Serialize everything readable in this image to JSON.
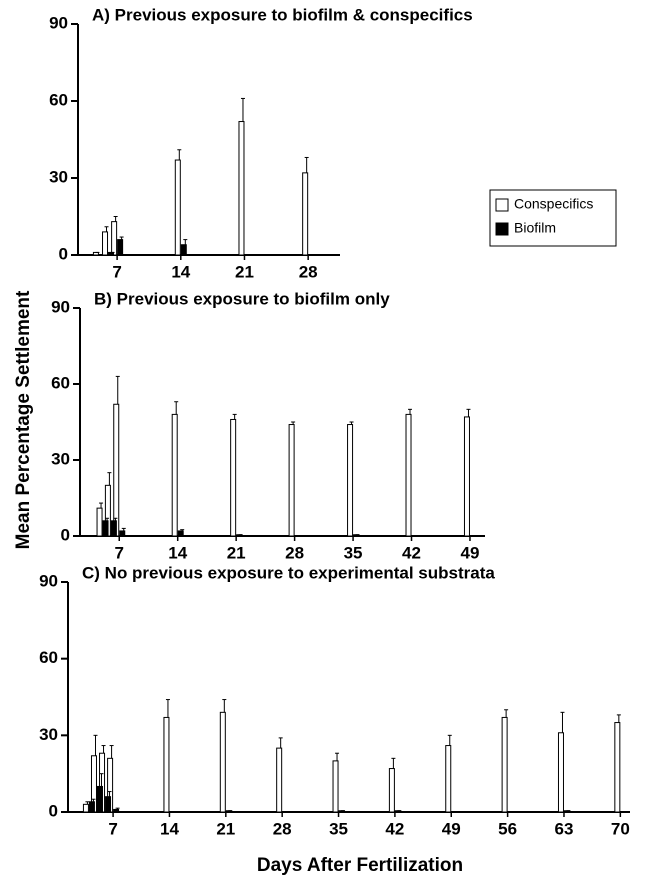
{
  "axis_labels": {
    "y": "Mean Percentage Settlement",
    "x": "Days After Fertilization"
  },
  "chart_data": [
    {
      "type": "bar",
      "title": "A) Previous exposure to biofilm & conspecifics",
      "x": [
        5,
        6,
        7,
        14,
        21,
        28
      ],
      "series": [
        {
          "name": "Conspecifics",
          "color": "#ffffff",
          "values": [
            1,
            9,
            13,
            37,
            52,
            32
          ],
          "errors": [
            0,
            2,
            2,
            4,
            9,
            6
          ]
        },
        {
          "name": "Biofilm",
          "color": "#000000",
          "values": [
            0,
            1,
            6,
            4,
            0,
            0
          ],
          "errors": [
            0,
            0,
            1,
            2,
            0,
            0
          ]
        }
      ],
      "xlim": [
        2.7,
        31.5
      ],
      "xticks": [
        7,
        14,
        21,
        28
      ],
      "ylim": [
        0,
        90
      ],
      "yticks": [
        0,
        30,
        60,
        90
      ],
      "legend": "right"
    },
    {
      "type": "bar",
      "title": "B) Previous exposure to biofilm only",
      "x": [
        5,
        6,
        7,
        14,
        21,
        28,
        35,
        42,
        49
      ],
      "series": [
        {
          "color": "#ffffff",
          "values": [
            11,
            20,
            52,
            48,
            46,
            44,
            44,
            48,
            47
          ],
          "errors": [
            2,
            5,
            11,
            5,
            2,
            1,
            1,
            2,
            3
          ]
        },
        {
          "color": "#000000",
          "values": [
            6,
            6,
            2,
            2,
            0.5,
            0,
            0.5,
            0,
            0
          ],
          "errors": [
            1,
            1,
            1,
            0.5,
            0,
            0,
            0,
            0,
            0
          ]
        }
      ],
      "xlim": [
        2.3,
        50.8
      ],
      "xticks": [
        7,
        14,
        21,
        28,
        35,
        42,
        49
      ],
      "ylim": [
        0,
        90
      ],
      "yticks": [
        0,
        30,
        60,
        90
      ]
    },
    {
      "type": "bar",
      "title": "C) No previous exposure to experimental substrata",
      "x": [
        4,
        5,
        6,
        7,
        14,
        21,
        28,
        35,
        42,
        49,
        56,
        63,
        70
      ],
      "series": [
        {
          "color": "#ffffff",
          "values": [
            3,
            22,
            23,
            21,
            37,
            39,
            25,
            20,
            17,
            26,
            37,
            31,
            35
          ],
          "errors": [
            1,
            8,
            3,
            5,
            7,
            5,
            4,
            3,
            4,
            4,
            3,
            8,
            3
          ]
        },
        {
          "color": "#000000",
          "values": [
            4,
            10,
            6,
            1,
            0,
            0.5,
            0,
            0.5,
            0.5,
            0,
            0,
            0.5,
            0
          ],
          "errors": [
            1,
            5,
            2,
            0.5,
            0,
            0,
            0,
            0,
            0,
            0,
            0,
            0,
            0
          ]
        }
      ],
      "xlim": [
        1.4,
        71.2
      ],
      "xticks": [
        7,
        14,
        21,
        28,
        35,
        42,
        49,
        56,
        63,
        70
      ],
      "ylim": [
        0,
        90
      ],
      "yticks": [
        0,
        30,
        60,
        90
      ]
    }
  ]
}
